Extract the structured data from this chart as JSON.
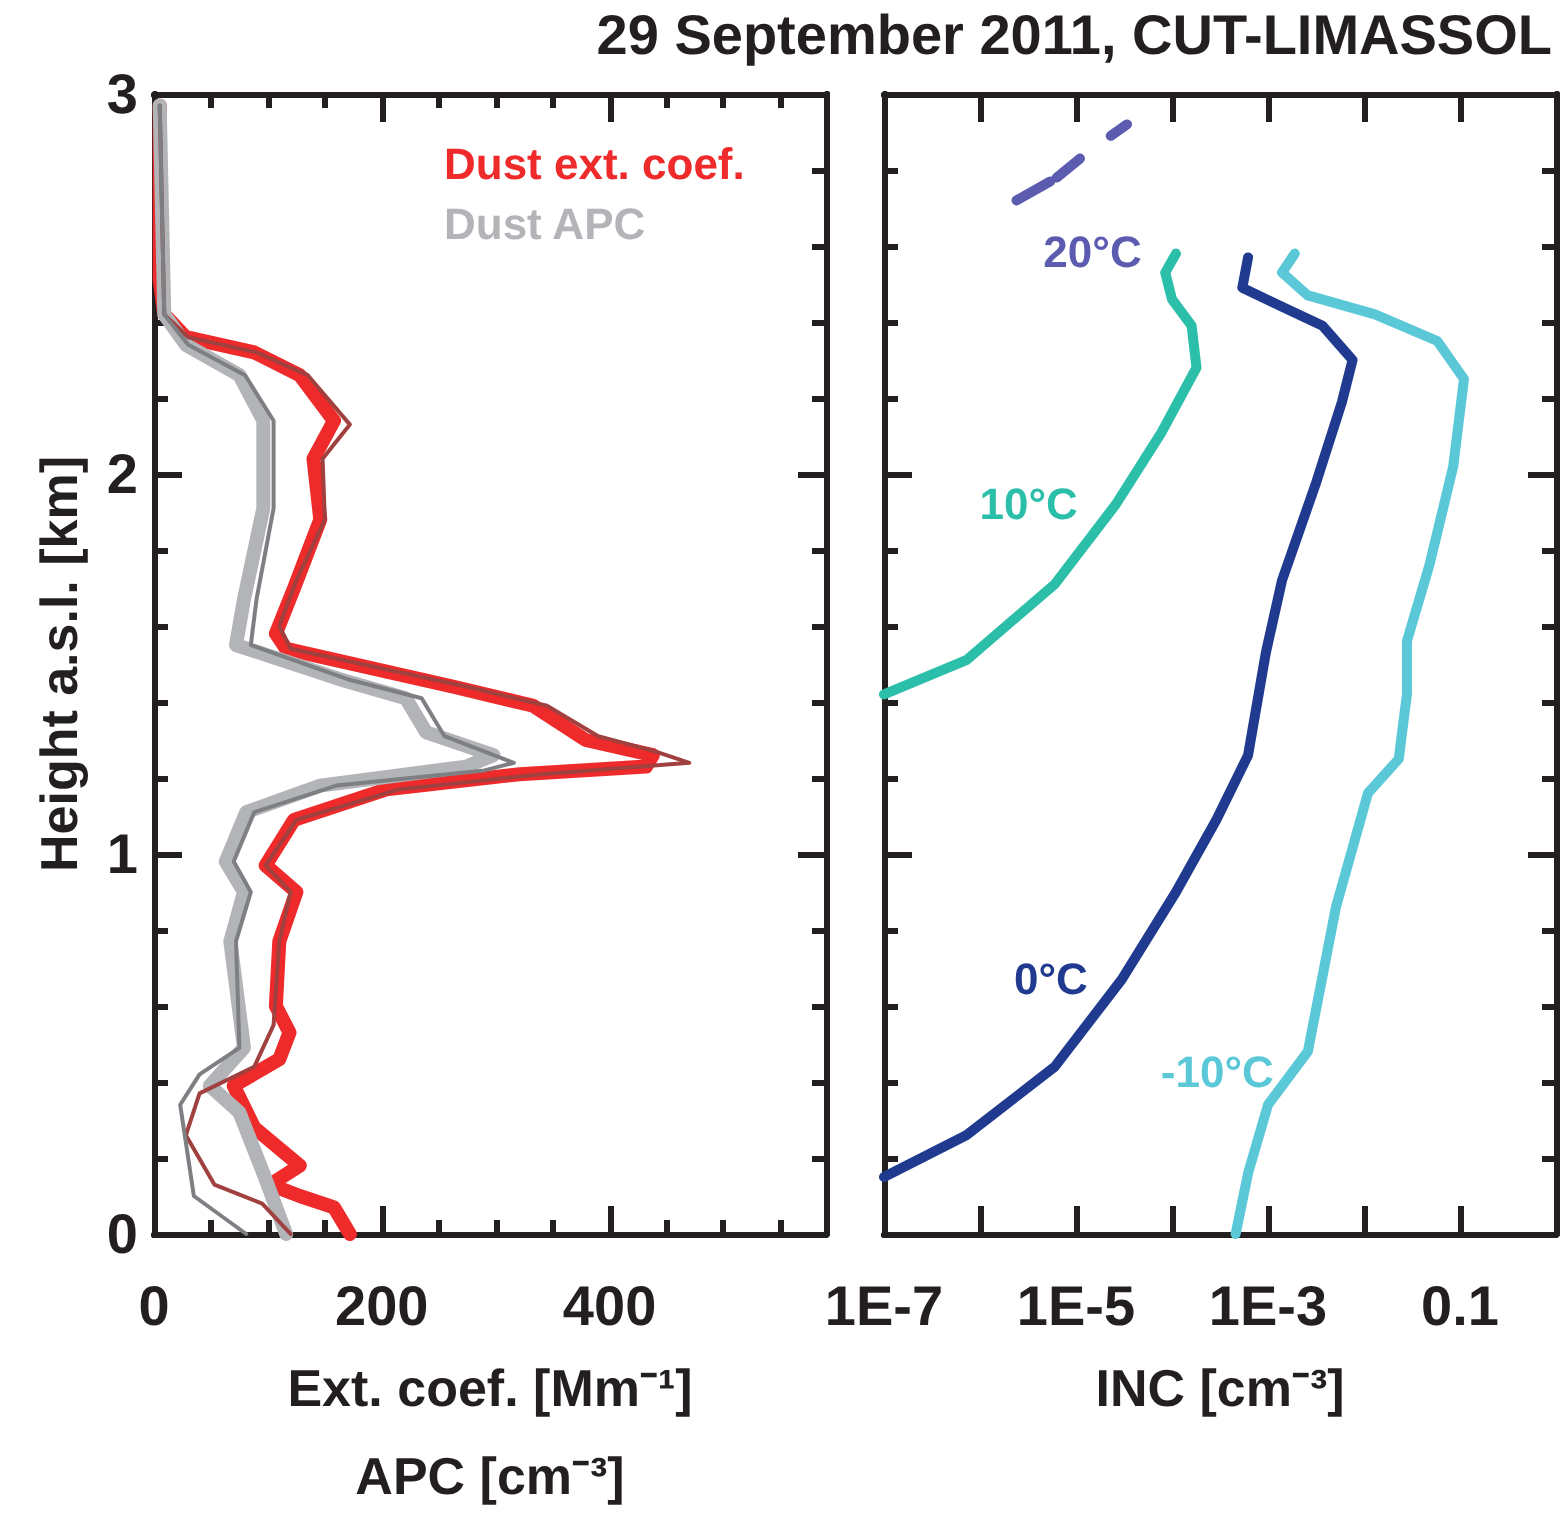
{
  "chart_data": [
    {
      "type": "line",
      "xlabel": "Ext. coef. [Mm⁻¹]\nAPC [cm⁻³]",
      "ylabel": "Height a.s.l. [km]",
      "xlim": [
        0,
        590
      ],
      "xticks": [
        0,
        {
          "value": 50,
          "label": null
        },
        {
          "value": 100,
          "label": null
        },
        {
          "value": 150,
          "label": null
        },
        200,
        {
          "value": 250,
          "label": null
        },
        {
          "value": 300,
          "label": null
        },
        {
          "value": 350,
          "label": null
        },
        400,
        {
          "value": 450,
          "label": null
        },
        {
          "value": 500,
          "label": null
        },
        {
          "value": 550,
          "label": null
        }
      ],
      "ylim": [
        0,
        3
      ],
      "yticks": [
        0,
        {
          "value": 0.2,
          "label": null
        },
        {
          "value": 0.4,
          "label": null
        },
        {
          "value": 0.6,
          "label": null
        },
        {
          "value": 0.8,
          "label": null
        },
        1,
        {
          "value": 1.2,
          "label": null
        },
        {
          "value": 1.4,
          "label": null
        },
        {
          "value": 1.6,
          "label": null
        },
        {
          "value": 1.8,
          "label": null
        },
        2,
        {
          "value": 2.2,
          "label": null
        },
        {
          "value": 2.4,
          "label": null
        },
        {
          "value": 2.6,
          "label": null
        },
        {
          "value": 2.8,
          "label": null
        },
        3
      ],
      "legend": "top right",
      "grid": false,
      "marker": "none",
      "series": [
        {
          "name": "Dust ext. coef.",
          "color": "#ee2a2a",
          "x": [
            172,
            158,
            128,
            102,
            128,
            88,
            70,
            110,
            119,
            107,
            110,
            125,
            98,
            123,
            204,
            321,
            432,
            438,
            379,
            333,
            263,
            116,
            107,
            123,
            146,
            140,
            158,
            128,
            88,
            28,
            9,
            5,
            5
          ],
          "values": [
            0,
            0.07,
            0.1,
            0.13,
            0.18,
            0.28,
            0.39,
            0.46,
            0.53,
            0.6,
            0.77,
            0.9,
            0.97,
            1.09,
            1.17,
            1.21,
            1.23,
            1.26,
            1.3,
            1.39,
            1.44,
            1.54,
            1.58,
            1.7,
            1.88,
            2.04,
            2.14,
            2.26,
            2.32,
            2.36,
            2.42,
            2.51,
            2.97
          ]
        },
        {
          "name": "Dust APC",
          "color": "#b2b4b8",
          "x": [
            116,
            96,
            75,
            49,
            79,
            67,
            79,
            63,
            81,
            146,
            274,
            298,
            239,
            221,
            163,
            72,
            79,
            96,
            96,
            75,
            28,
            9,
            5
          ],
          "values": [
            0,
            0.16,
            0.32,
            0.39,
            0.49,
            0.77,
            0.9,
            0.98,
            1.11,
            1.18,
            1.23,
            1.26,
            1.32,
            1.41,
            1.46,
            1.55,
            1.67,
            1.91,
            2.14,
            2.26,
            2.34,
            2.42,
            2.97
          ]
        },
        {
          "color": "#a0403f",
          "x": [
            120,
            95,
            53,
            28,
            40,
            88,
            105,
            110,
            120,
            98,
            125,
            215,
            340,
            470,
            440,
            390,
            345,
            275,
            120,
            110,
            125,
            150,
            148,
            172,
            135,
            90,
            30,
            9,
            5
          ],
          "values": [
            0,
            0.08,
            0.13,
            0.26,
            0.37,
            0.44,
            0.55,
            0.77,
            0.9,
            0.97,
            1.09,
            1.17,
            1.21,
            1.24,
            1.27,
            1.31,
            1.39,
            1.44,
            1.54,
            1.6,
            1.72,
            1.88,
            2.04,
            2.13,
            2.26,
            2.32,
            2.36,
            2.42,
            2.97
          ]
        },
        {
          "color": "#7d7f83",
          "x": [
            81,
            35,
            23,
            40,
            75,
            72,
            85,
            70,
            88,
            160,
            290,
            316,
            255,
            235,
            170,
            85,
            90,
            105,
            105,
            80,
            30,
            9,
            5
          ],
          "values": [
            0,
            0.1,
            0.34,
            0.42,
            0.49,
            0.77,
            0.9,
            0.98,
            1.11,
            1.18,
            1.22,
            1.24,
            1.31,
            1.41,
            1.46,
            1.55,
            1.67,
            1.91,
            2.14,
            2.26,
            2.34,
            2.42,
            2.97
          ]
        }
      ]
    },
    {
      "type": "line",
      "title": "29 September 2011, CUT-LIMASSOL",
      "xlabel": "INC [cm⁻³]",
      "log": "x",
      "xlim": [
        1e-07,
        1
      ],
      "xticks": [
        {
          "value": 1e-07,
          "label": "1E-7"
        },
        {
          "value": 1e-06,
          "label": null
        },
        {
          "value": 1e-05,
          "label": "1E-5"
        },
        {
          "value": 0.0001,
          "label": null
        },
        {
          "value": 0.001,
          "label": "1E-3"
        },
        {
          "value": 0.01,
          "label": null
        },
        0.1,
        {
          "value": 1,
          "label": null
        }
      ],
      "ylim": [
        0,
        3
      ],
      "yticks": [
        0,
        {
          "value": 0.2,
          "label": null
        },
        {
          "value": 0.4,
          "label": null
        },
        {
          "value": 0.6,
          "label": null
        },
        {
          "value": 0.8,
          "label": null
        },
        1,
        {
          "value": 1.2,
          "label": null
        },
        {
          "value": 1.4,
          "label": null
        },
        {
          "value": 1.6,
          "label": null
        },
        {
          "value": 1.8,
          "label": null
        },
        2,
        {
          "value": 2.2,
          "label": null
        },
        {
          "value": 2.4,
          "label": null
        },
        {
          "value": 2.6,
          "label": null
        },
        {
          "value": 2.8,
          "label": null
        },
        3
      ],
      "tick_labels": "x",
      "grid": false,
      "marker": "none",
      "series": [
        {
          "name": "20°C",
          "color": "#5b5bb0",
          "x": [
            2.4e-06,
            5.4e-06,
            null,
            6.3e-06,
            1.1e-05,
            null,
            2.3e-05,
            3.4e-05
          ],
          "values": [
            2.72,
            2.77,
            null,
            2.78,
            2.83,
            null,
            2.89,
            2.92
          ]
        },
        {
          "name": "10°C",
          "color": "#2bbfaa",
          "x": [
            1e-07,
            7.2e-07,
            6e-06,
            2.6e-05,
            7.8e-05,
            0.00018,
            0.00016,
            0.0001,
            8.5e-05,
            0.00011
          ],
          "values": [
            1.42,
            1.51,
            1.71,
            1.92,
            2.11,
            2.28,
            2.39,
            2.46,
            2.53,
            2.58
          ]
        },
        {
          "name": "0°C",
          "color": "#1f3a8f",
          "x": [
            1e-07,
            7.2e-07,
            6e-06,
            3e-05,
            0.00011,
            0.00029,
            0.00062,
            0.00095,
            0.0014,
            0.0032,
            0.0059,
            0.0076,
            0.0037,
            0.0014,
            0.00054,
            0.00062
          ],
          "values": [
            0.15,
            0.26,
            0.44,
            0.67,
            0.9,
            1.09,
            1.26,
            1.53,
            1.72,
            1.98,
            2.19,
            2.3,
            2.39,
            2.44,
            2.49,
            2.57
          ]
        },
        {
          "name": "-10°C",
          "color": "#5bc8d8",
          "x": [
            0.00046,
            0.00062,
            0.001,
            0.0026,
            0.0051,
            0.011,
            0.023,
            0.028,
            0.028,
            0.048,
            0.085,
            0.11,
            0.058,
            0.013,
            0.0026,
            0.0014,
            0.0019
          ],
          "values": [
            0,
            0.16,
            0.34,
            0.48,
            0.86,
            1.16,
            1.25,
            1.42,
            1.56,
            1.76,
            2.02,
            2.25,
            2.35,
            2.42,
            2.47,
            2.53,
            2.58
          ]
        }
      ]
    }
  ]
}
